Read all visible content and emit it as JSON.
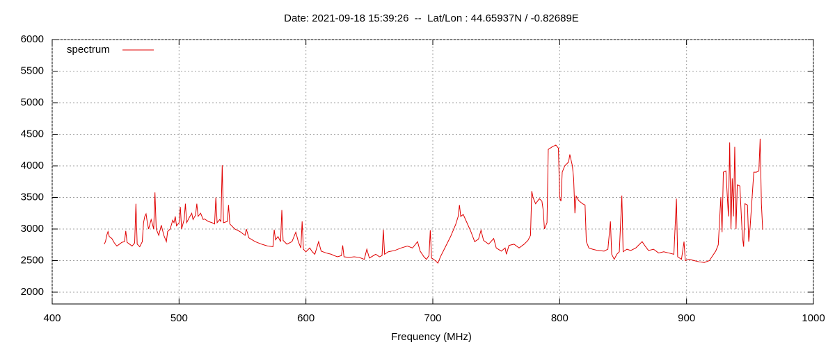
{
  "chart_data": {
    "type": "line",
    "title": "Date: 2021-09-18 15:39:26  --  Lat/Lon : 44.65937N / -0.82689E",
    "x_label": "Frequency (MHz)",
    "xlim": [
      400,
      1000
    ],
    "xticks": [
      400,
      500,
      600,
      700,
      800,
      900,
      1000
    ],
    "ylim": [
      1813,
      6000
    ],
    "yticks": [
      2000,
      2500,
      3000,
      3500,
      4000,
      4500,
      5000,
      5500,
      6000
    ],
    "grid": true,
    "legend": "top-left",
    "x": [
      441,
      442,
      443,
      444,
      445,
      447,
      449,
      451,
      453,
      455,
      457,
      458,
      459,
      461,
      463,
      465,
      466,
      467,
      469,
      471,
      472,
      473,
      474,
      475,
      476,
      478,
      479,
      480,
      481,
      482,
      484,
      486,
      488,
      490,
      491,
      493,
      495,
      496,
      497,
      498,
      500,
      501,
      502,
      504,
      505,
      506,
      508,
      510,
      511,
      513,
      514,
      515,
      517,
      519,
      520,
      523,
      526,
      528,
      529,
      530,
      532,
      533,
      534,
      535,
      538,
      539,
      540,
      544,
      548,
      552,
      553,
      555,
      560,
      565,
      570,
      574,
      575,
      576,
      578,
      580,
      581,
      582,
      585,
      589,
      592,
      594,
      596,
      597,
      598,
      600,
      603,
      605,
      607,
      610,
      612,
      616,
      620,
      622,
      625,
      628,
      629,
      630,
      634,
      638,
      642,
      646,
      648,
      650,
      655,
      658,
      660,
      661,
      662,
      665,
      670,
      675,
      680,
      684,
      688,
      690,
      693,
      695,
      697,
      698,
      699,
      702,
      704,
      706,
      710,
      714,
      718,
      720,
      721,
      722,
      724,
      726,
      730,
      733,
      736,
      738,
      740,
      744,
      748,
      750,
      754,
      757,
      758,
      760,
      764,
      768,
      772,
      775,
      777,
      778,
      779,
      781,
      784,
      786,
      787,
      788,
      790,
      791,
      794,
      797,
      799,
      800,
      801,
      802,
      804,
      807,
      808,
      810,
      811,
      812,
      813,
      815,
      818,
      820,
      821,
      823,
      826,
      830,
      835,
      838,
      840,
      841,
      843,
      845,
      847,
      849,
      850,
      853,
      856,
      860,
      865,
      867,
      870,
      874,
      878,
      882,
      886,
      890,
      892,
      893,
      896,
      898,
      899,
      902,
      906,
      910,
      914,
      918,
      920,
      923,
      925,
      927,
      928,
      929,
      931,
      933,
      934,
      935,
      936,
      937,
      938,
      939,
      940,
      942,
      944,
      945,
      946,
      948,
      949,
      950,
      952,
      953,
      955,
      957,
      958,
      959,
      960
    ],
    "series": [
      {
        "name": "spectrum",
        "color": "#e00000",
        "values": [
          2760,
          2800,
          2900,
          2960,
          2880,
          2850,
          2780,
          2730,
          2760,
          2790,
          2800,
          2970,
          2790,
          2760,
          2730,
          2780,
          3400,
          2760,
          2720,
          2800,
          3100,
          3200,
          3240,
          3100,
          3000,
          3150,
          3080,
          3000,
          3580,
          3000,
          2900,
          3060,
          2900,
          2800,
          2960,
          3000,
          3140,
          3100,
          3200,
          3050,
          3100,
          3350,
          3000,
          3150,
          3400,
          3100,
          3180,
          3250,
          3150,
          3220,
          3400,
          3200,
          3250,
          3150,
          3160,
          3120,
          3100,
          3080,
          3500,
          3100,
          3150,
          3120,
          4010,
          3100,
          3120,
          3380,
          3080,
          3000,
          2960,
          2900,
          3000,
          2860,
          2800,
          2760,
          2730,
          2720,
          2990,
          2830,
          2880,
          2800,
          3300,
          2820,
          2760,
          2800,
          2950,
          2800,
          2700,
          3120,
          2680,
          2640,
          2700,
          2640,
          2600,
          2800,
          2650,
          2620,
          2600,
          2580,
          2560,
          2580,
          2740,
          2560,
          2550,
          2560,
          2550,
          2520,
          2680,
          2540,
          2600,
          2560,
          2580,
          2990,
          2600,
          2640,
          2660,
          2700,
          2730,
          2700,
          2800,
          2650,
          2560,
          2520,
          2580,
          2980,
          2540,
          2500,
          2460,
          2560,
          2720,
          2880,
          3070,
          3200,
          3380,
          3200,
          3230,
          3140,
          2960,
          2800,
          2840,
          2980,
          2820,
          2760,
          2850,
          2700,
          2650,
          2700,
          2600,
          2740,
          2760,
          2700,
          2760,
          2820,
          2900,
          3600,
          3500,
          3400,
          3480,
          3440,
          3300,
          3000,
          3100,
          4260,
          4300,
          4330,
          4280,
          3500,
          3440,
          3900,
          4000,
          4060,
          4180,
          4000,
          3800,
          3250,
          3520,
          3450,
          3400,
          3380,
          2800,
          2700,
          2680,
          2660,
          2650,
          2680,
          3120,
          2600,
          2520,
          2600,
          2640,
          3530,
          2640,
          2680,
          2660,
          2700,
          2800,
          2740,
          2660,
          2680,
          2620,
          2640,
          2620,
          2600,
          3480,
          2560,
          2520,
          2800,
          2500,
          2520,
          2500,
          2480,
          2470,
          2500,
          2560,
          2650,
          2750,
          3500,
          2950,
          3900,
          3920,
          3200,
          4370,
          3000,
          3800,
          3200,
          4300,
          3000,
          3700,
          3680,
          2880,
          2720,
          3400,
          3380,
          2800,
          3000,
          3600,
          3900,
          3900,
          3920,
          4430,
          3400,
          2990
        ]
      }
    ]
  }
}
